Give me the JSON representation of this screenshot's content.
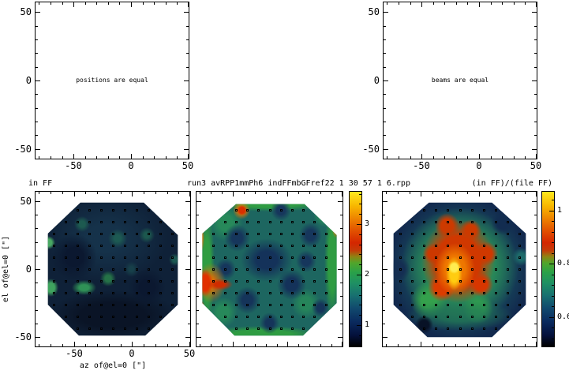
{
  "page": {
    "background": "#ffffff",
    "foreground": "#000000"
  },
  "titles": {
    "left": "in FF",
    "center": "run3 avRPP1mmPh6 indFFmbGFref22 1 30 57 1 6.rpp",
    "right": "(in FF)/(file FF)"
  },
  "axis_labels": {
    "x": "az of@el=0 [\"]",
    "y": "el of@el=0 [\"]"
  },
  "colormap": {
    "stops": [
      [
        0,
        "#000000"
      ],
      [
        0.07,
        "#04103a"
      ],
      [
        0.16,
        "#0a2a5e"
      ],
      [
        0.25,
        "#114b6e"
      ],
      [
        0.33,
        "#187070"
      ],
      [
        0.41,
        "#1f9063"
      ],
      [
        0.48,
        "#2aa148"
      ],
      [
        0.54,
        "#51a52b"
      ],
      [
        0.58,
        "#8d8414"
      ],
      [
        0.62,
        "#c43c08"
      ],
      [
        0.67,
        "#d42600"
      ],
      [
        0.75,
        "#e25200"
      ],
      [
        0.83,
        "#ee8500"
      ],
      [
        0.91,
        "#f8b800"
      ],
      [
        1,
        "#ffe81e"
      ]
    ]
  },
  "chart_data": [
    {
      "type": "empty",
      "panel": "top-left",
      "text": "positions are equal",
      "xlim": [
        -83,
        50
      ],
      "ylim": [
        -57,
        57
      ],
      "xticks": [
        -50,
        0,
        50
      ],
      "yticks": [
        -50,
        0,
        50
      ],
      "axes": {
        "x": {
          "range": [
            -83,
            50
          ],
          "ticks": [
            -50,
            0,
            50
          ],
          "minor": 10,
          "labels": true
        },
        "y": {
          "range": [
            -57,
            57
          ],
          "ticks": [
            -50,
            0,
            50
          ],
          "minor": 10,
          "labels": true
        }
      }
    },
    {
      "type": "empty",
      "panel": "top-right",
      "text": "beams are equal",
      "xlim": [
        -83,
        50
      ],
      "ylim": [
        -57,
        57
      ],
      "xticks": [
        -50,
        0,
        50
      ],
      "yticks": [
        -50,
        0,
        50
      ],
      "axes": {
        "x": {
          "range": [
            -83,
            50
          ],
          "ticks": [
            -50,
            0,
            50
          ],
          "minor": 10,
          "labels": true
        },
        "y": {
          "range": [
            -57,
            57
          ],
          "ticks": [
            -50,
            0,
            50
          ],
          "minor": 10,
          "labels": true
        }
      }
    },
    {
      "type": "heatmap",
      "panel": "bottom-left",
      "title": "in FF",
      "xlabel": "az of@el=0 [\"]",
      "ylabel": "el of@el=0 [\"]",
      "xlim": [
        -83,
        50
      ],
      "ylim": [
        -57,
        57
      ],
      "footprint": "octagon",
      "value_range_hint": "low, mostly near colormap minimum (dark blue) with faint green spots",
      "axes": {
        "x": {
          "range": [
            -83,
            50
          ],
          "ticks": [
            -50,
            0,
            50
          ],
          "minor": 10,
          "labels": true
        },
        "y": {
          "range": [
            -57,
            57
          ],
          "ticks": [
            -50,
            0,
            50
          ],
          "minor": 10,
          "labels": true
        }
      },
      "markers": {
        "cols": 11,
        "rows": 11,
        "x0": 0.115,
        "y0": 0.115,
        "step": 0.077,
        "clip": "polygon(29% 7%, 70% 7%, 92% 28%, 92% 73%, 71% 93%, 28% 93%, 8% 73%, 8% 27%)"
      },
      "blobs": {
        "base": "#0f2138",
        "clip": "polygon(29% 7%, 70% 7%, 92% 28%, 92% 73%, 71% 93%, 28% 93%, 8% 73%, 8% 27%)",
        "features": [
          {
            "x": 0.45,
            "y": 0.3,
            "rx": 0.4,
            "ry": 0.28,
            "c": "#16344c",
            "s": 0.3,
            "a": 0.9
          },
          {
            "x": 0.5,
            "y": 0.8,
            "rx": 0.42,
            "ry": 0.16,
            "c": "#0a1426",
            "s": 0.5
          },
          {
            "x": 0.25,
            "y": 0.42,
            "r": 0.15,
            "c": "#0b1830",
            "s": 0.4
          },
          {
            "x": 0.72,
            "y": 0.62,
            "r": 0.12,
            "c": "#0b1830",
            "s": 0.4
          },
          {
            "x": 0.3,
            "y": 0.21,
            "r": 0.05,
            "c": "#1d5a50",
            "s": 0.4
          },
          {
            "x": 0.53,
            "y": 0.3,
            "r": 0.06,
            "c": "#1d5a52",
            "s": 0.35
          },
          {
            "x": 0.72,
            "y": 0.28,
            "r": 0.05,
            "c": "#1c584e",
            "s": 0.35
          },
          {
            "x": 0.9,
            "y": 0.44,
            "r": 0.04,
            "c": "#1c5852",
            "s": 0.4
          },
          {
            "x": 0.62,
            "y": 0.5,
            "r": 0.05,
            "c": "#17404a",
            "s": 0.3
          },
          {
            "x": 0.085,
            "y": 0.33,
            "r": 0.045,
            "c": "#49a863",
            "s": 0.5
          },
          {
            "x": 0.1,
            "y": 0.62,
            "rx": 0.05,
            "ry": 0.06,
            "c": "#3fa45e",
            "s": 0.5
          },
          {
            "x": 0.315,
            "y": 0.62,
            "rx": 0.08,
            "ry": 0.05,
            "c": "#2f9156",
            "s": 0.4
          },
          {
            "x": 0.47,
            "y": 0.56,
            "r": 0.05,
            "c": "#257247",
            "s": 0.4
          }
        ]
      }
    },
    {
      "type": "heatmap",
      "panel": "bottom-middle",
      "title": "run3 avRPP1mmPh6 indFFmbGFref22 1 30 57 1 6.rpp",
      "xlim": [
        -83,
        50
      ],
      "ylim": [
        -57,
        57
      ],
      "footprint": "octagon",
      "axes": {
        "x": {
          "range": [
            -83,
            50
          ],
          "ticks": [
            -50,
            0,
            50
          ],
          "minor": 10,
          "labels": false
        },
        "y": {
          "range": [
            -57,
            57
          ],
          "ticks": [
            -50,
            0,
            50
          ],
          "minor": 10,
          "labels": false
        }
      },
      "colorbar": {
        "range": [
          0.58,
          3.64
        ],
        "ticks": [
          1,
          2,
          3
        ],
        "minor": 0.2
      },
      "markers": {
        "cols": 11,
        "rows": 11,
        "x0": 0.115,
        "y0": 0.115,
        "step": 0.077,
        "clip": "polygon(27% 8%, 74% 8%, 96% 28%, 96% 72%, 73% 93%, 26% 93%, 4% 72%, 4% 27%)"
      },
      "blobs": {
        "base": "#1d6660",
        "clip": "polygon(27% 8%, 74% 8%, 96% 28%, 96% 72%, 73% 93%, 26% 93%, 4% 72%, 4% 27%)",
        "features": [
          {
            "x": 0.5,
            "y": 0.075,
            "rx": 0.42,
            "ry": 0.055,
            "c": "#2f9c42",
            "s": 0.5
          },
          {
            "x": 0.45,
            "y": 0.92,
            "rx": 0.4,
            "ry": 0.055,
            "c": "#2f9c42",
            "s": 0.5
          },
          {
            "x": 0.07,
            "y": 0.5,
            "rx": 0.055,
            "ry": 0.4,
            "c": "#2f9c42",
            "s": 0.5
          },
          {
            "x": 0.93,
            "y": 0.45,
            "rx": 0.055,
            "ry": 0.38,
            "c": "#2f9c42",
            "s": 0.5
          },
          {
            "x": 0.2,
            "y": 0.2,
            "r": 0.12,
            "c": "#27895a",
            "s": 0.4
          },
          {
            "x": 0.75,
            "y": 0.72,
            "r": 0.1,
            "c": "#26855a",
            "s": 0.4
          },
          {
            "x": 0.18,
            "y": 0.78,
            "r": 0.1,
            "c": "#27895a",
            "s": 0.4
          },
          {
            "x": 0.88,
            "y": 0.15,
            "r": 0.08,
            "c": "#28905a",
            "s": 0.4
          },
          {
            "x": 0.48,
            "y": 0.44,
            "rx": 0.18,
            "ry": 0.14,
            "c": "#14325a",
            "s": 0.4
          },
          {
            "x": 0.28,
            "y": 0.3,
            "r": 0.09,
            "c": "#16365c",
            "s": 0.4
          },
          {
            "x": 0.65,
            "y": 0.6,
            "r": 0.1,
            "c": "#14325a",
            "s": 0.4
          },
          {
            "x": 0.78,
            "y": 0.28,
            "r": 0.08,
            "c": "#16365c",
            "s": 0.4
          },
          {
            "x": 0.35,
            "y": 0.7,
            "r": 0.09,
            "c": "#15345a",
            "s": 0.4
          },
          {
            "x": 0.58,
            "y": 0.12,
            "r": 0.07,
            "c": "#16365c",
            "s": 0.4
          },
          {
            "x": 0.85,
            "y": 0.75,
            "r": 0.06,
            "c": "#15345a",
            "s": 0.4
          },
          {
            "x": 0.5,
            "y": 0.85,
            "r": 0.07,
            "c": "#15345a",
            "s": 0.4
          },
          {
            "x": 0.2,
            "y": 0.5,
            "r": 0.07,
            "c": "#16365c",
            "s": 0.4
          },
          {
            "x": 0.75,
            "y": 0.45,
            "r": 0.07,
            "c": "#16365c",
            "s": 0.4
          },
          {
            "x": 0.1,
            "y": 0.59,
            "rx": 0.1,
            "ry": 0.13,
            "c": "#e87000",
            "s": 0.25,
            "a": 0.9
          },
          {
            "x": 0.06,
            "y": 0.59,
            "rx": 0.055,
            "ry": 0.09,
            "c": "#e13000",
            "s": 0.55
          },
          {
            "x": 0.16,
            "y": 0.6,
            "rx": 0.09,
            "ry": 0.04,
            "c": "#d02c00",
            "s": 0.4
          },
          {
            "x": 0.025,
            "y": 0.3,
            "rx": 0.03,
            "ry": 0.1,
            "c": "#e87800",
            "s": 0.5
          },
          {
            "x": 0.03,
            "y": 0.76,
            "rx": 0.03,
            "ry": 0.06,
            "c": "#d84000",
            "s": 0.5
          },
          {
            "x": 0.15,
            "y": 0.08,
            "rx": 0.07,
            "ry": 0.04,
            "c": "#e87800",
            "s": 0.4
          },
          {
            "x": 0.31,
            "y": 0.12,
            "r": 0.06,
            "c": "#e87800",
            "s": 0.3
          },
          {
            "x": 0.31,
            "y": 0.12,
            "r": 0.035,
            "c": "#d83000",
            "s": 0.6
          },
          {
            "x": 0.9,
            "y": 0.1,
            "r": 0.05,
            "c": "#e05000",
            "s": 0.4
          },
          {
            "x": 0.955,
            "y": 0.2,
            "rx": 0.03,
            "ry": 0.1,
            "c": "#e87400",
            "s": 0.5
          },
          {
            "x": 0.13,
            "y": 0.87,
            "r": 0.03,
            "c": "#e06000",
            "s": 0.5
          }
        ]
      }
    },
    {
      "type": "heatmap",
      "panel": "bottom-right",
      "title": "(in FF)/(file FF)",
      "xlim": [
        -83,
        50
      ],
      "ylim": [
        -57,
        57
      ],
      "footprint": "octagon",
      "axes": {
        "x": {
          "range": [
            -83,
            50
          ],
          "ticks": [
            -50,
            0,
            50
          ],
          "minor": 10,
          "labels": false
        },
        "y": {
          "range": [
            -57,
            57
          ],
          "ticks": [
            -50,
            0,
            50
          ],
          "minor": 10,
          "labels": false
        }
      },
      "colorbar": {
        "range": [
          0.49,
          1.07
        ],
        "ticks": [
          0.6,
          0.8,
          1
        ],
        "minor": 0.04
      },
      "markers": {
        "cols": 11,
        "rows": 11,
        "x0": 0.115,
        "y0": 0.115,
        "step": 0.077,
        "clip": "polygon(30% 7%, 71% 7%, 93% 27%, 93% 73%, 71% 94%, 29% 94%, 7% 73%, 7% 27%)"
      },
      "blobs": {
        "base": "#12294e",
        "clip": "polygon(30% 7%, 71% 7%, 93% 27%, 93% 73%, 71% 94%, 29% 94%, 7% 73%, 7% 27%)",
        "features": [
          {
            "x": 0.5,
            "y": 0.5,
            "r": 0.46,
            "c": "#1a5c64",
            "s": 0.45
          },
          {
            "x": 0.5,
            "y": 0.48,
            "r": 0.38,
            "c": "#2b9155",
            "s": 0.5
          },
          {
            "x": 0.3,
            "y": 0.7,
            "r": 0.12,
            "c": "#34a04c",
            "s": 0.4
          },
          {
            "x": 0.62,
            "y": 0.75,
            "r": 0.1,
            "c": "#2f9a4f",
            "s": 0.4
          },
          {
            "x": 0.5,
            "y": 0.8,
            "rx": 0.35,
            "ry": 0.1,
            "c": "#237a55",
            "s": 0.4,
            "a": 0.7
          },
          {
            "x": 0.49,
            "y": 0.45,
            "rx": 0.24,
            "ry": 0.27,
            "c": "#d03800",
            "s": 0.6
          },
          {
            "x": 0.42,
            "y": 0.22,
            "r": 0.08,
            "c": "#cc3a00",
            "s": 0.5
          },
          {
            "x": 0.57,
            "y": 0.25,
            "r": 0.07,
            "c": "#cc3a00",
            "s": 0.5
          },
          {
            "x": 0.67,
            "y": 0.4,
            "r": 0.08,
            "c": "#d03800",
            "s": 0.5
          },
          {
            "x": 0.64,
            "y": 0.6,
            "r": 0.08,
            "c": "#d83600",
            "s": 0.5
          },
          {
            "x": 0.38,
            "y": 0.62,
            "r": 0.09,
            "c": "#dc3c00",
            "s": 0.5
          },
          {
            "x": 0.33,
            "y": 0.4,
            "r": 0.07,
            "c": "#cc3800",
            "s": 0.5
          },
          {
            "x": 0.47,
            "y": 0.5,
            "rx": 0.13,
            "ry": 0.17,
            "c": "#ee7700",
            "s": 0.5
          },
          {
            "x": 0.465,
            "y": 0.53,
            "rx": 0.055,
            "ry": 0.11,
            "c": "#ffcc10",
            "s": 0.5
          },
          {
            "x": 0.465,
            "y": 0.49,
            "r": 0.04,
            "c": "#ffec50",
            "s": 0.6
          },
          {
            "x": 0.27,
            "y": 0.86,
            "r": 0.06,
            "c": "#081226",
            "s": 0.5
          },
          {
            "x": 0.78,
            "y": 0.2,
            "r": 0.08,
            "c": "#122c50",
            "s": 0.5
          },
          {
            "x": 0.1,
            "y": 0.5,
            "r": 0.08,
            "c": "#142e52",
            "s": 0.5
          },
          {
            "x": 0.9,
            "y": 0.42,
            "r": 0.06,
            "c": "#1d6a6a",
            "s": 0.4
          }
        ]
      }
    }
  ]
}
